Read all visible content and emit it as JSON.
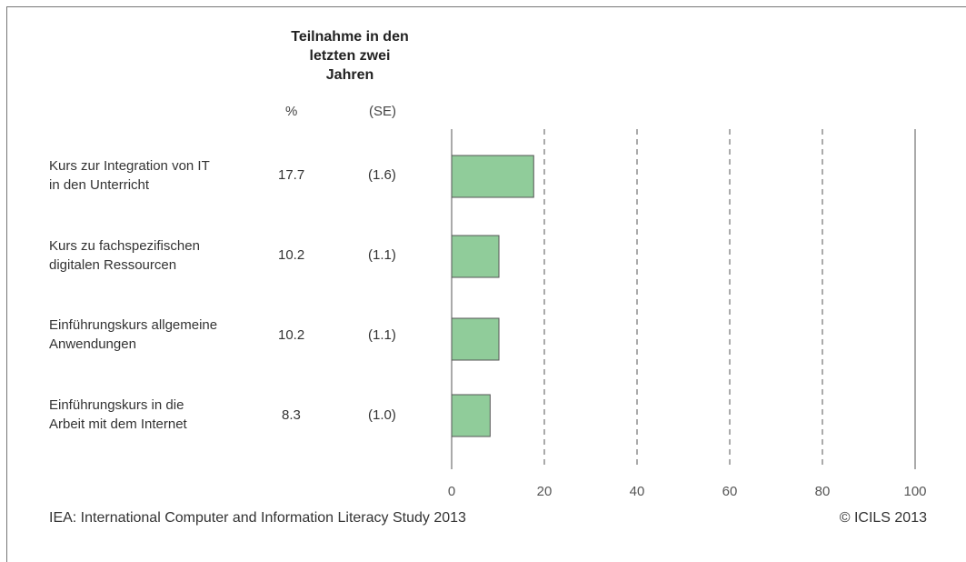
{
  "header": {
    "title": "Teilnahme in den letzten zwei Jahren",
    "title_lines": [
      "Teilnahme in den",
      "letzten zwei",
      "Jahren"
    ],
    "col_percent": "%",
    "col_se": "(SE)"
  },
  "chart_data": {
    "type": "bar",
    "orientation": "horizontal",
    "categories": [
      "Kurs zur Integration von IT in den Unterricht",
      "Kurs zu fachspezifischen digitalen Ressourcen",
      "Einführungskurs allgemeine Anwendungen",
      "Einführungskurs in die Arbeit mit dem Internet"
    ],
    "category_lines": [
      [
        "Kurs zur Integration von IT",
        "in den Unterricht"
      ],
      [
        "Kurs zu fachspezifischen",
        "digitalen Ressourcen"
      ],
      [
        "Einführungskurs allgemeine",
        "Anwendungen"
      ],
      [
        "Einführungskurs in die",
        "Arbeit mit dem Internet"
      ]
    ],
    "values": [
      17.7,
      10.2,
      10.2,
      8.3
    ],
    "value_labels": [
      "17.7",
      "10.2",
      "10.2",
      "8.3"
    ],
    "se_labels": [
      "(1.6)",
      "(1.1)",
      "(1.1)",
      "(1.0)"
    ],
    "xlim": [
      0,
      100
    ],
    "xticks": [
      0,
      20,
      40,
      60,
      80,
      100
    ],
    "grid": "dashed vertical",
    "bar_color": "#90cc9a",
    "bar_edge": "#555555"
  },
  "footer": {
    "source": "IEA: International Computer and Information Literacy Study 2013",
    "copyright": "© ICILS 2013"
  }
}
